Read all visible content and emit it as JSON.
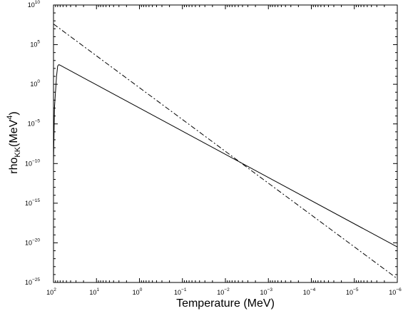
{
  "chart_data": {
    "type": "line",
    "title": "",
    "xlabel": "Temperature (MeV)",
    "ylabel_parts": {
      "base": "rho",
      "sub": "KK",
      "open": "(MeV",
      "sup": "4",
      "close": ")"
    },
    "x_scale": "log",
    "x_reversed": true,
    "y_scale": "log",
    "xlim": [
      100,
      1e-06
    ],
    "ylim": [
      1e-25,
      10000000000.0
    ],
    "grid": false,
    "x_ticks": [
      {
        "value": 100,
        "base": "10",
        "exp": "2"
      },
      {
        "value": 10,
        "base": "10",
        "exp": "1"
      },
      {
        "value": 1,
        "base": "10",
        "exp": "0"
      },
      {
        "value": 0.1,
        "base": "10",
        "exp": "−1"
      },
      {
        "value": 0.01,
        "base": "10",
        "exp": "−2"
      },
      {
        "value": 0.001,
        "base": "10",
        "exp": "−3"
      },
      {
        "value": 0.0001,
        "base": "10",
        "exp": "−4"
      },
      {
        "value": 1e-05,
        "base": "10",
        "exp": "−5"
      },
      {
        "value": 1e-06,
        "base": "10",
        "exp": "−6"
      }
    ],
    "y_ticks": [
      {
        "value": 10000000000.0,
        "base": "10",
        "exp": "10"
      },
      {
        "value": 100000.0,
        "base": "10",
        "exp": "5"
      },
      {
        "value": 1,
        "base": "10",
        "exp": "0"
      },
      {
        "value": 1e-05,
        "base": "10",
        "exp": "−5"
      },
      {
        "value": 1e-10,
        "base": "10",
        "exp": "−10"
      },
      {
        "value": 1e-15,
        "base": "10",
        "exp": "−15"
      },
      {
        "value": 1e-20,
        "base": "10",
        "exp": "−20"
      },
      {
        "value": 1e-25,
        "base": "10",
        "exp": "−25"
      }
    ],
    "series": [
      {
        "style": "solid",
        "color": "#000000",
        "points": [
          [
            100,
            1e-10
          ],
          [
            95,
            0.001
          ],
          [
            90,
            0.1
          ],
          [
            85,
            10
          ],
          [
            80,
            200
          ],
          [
            75,
            300
          ],
          [
            70,
            250
          ],
          [
            1e-06,
            3e-21
          ]
        ]
      },
      {
        "style": "dashdot",
        "color": "#000000",
        "points": [
          [
            100,
            40000000.0
          ],
          [
            1e-06,
            3e-25
          ]
        ]
      }
    ]
  }
}
